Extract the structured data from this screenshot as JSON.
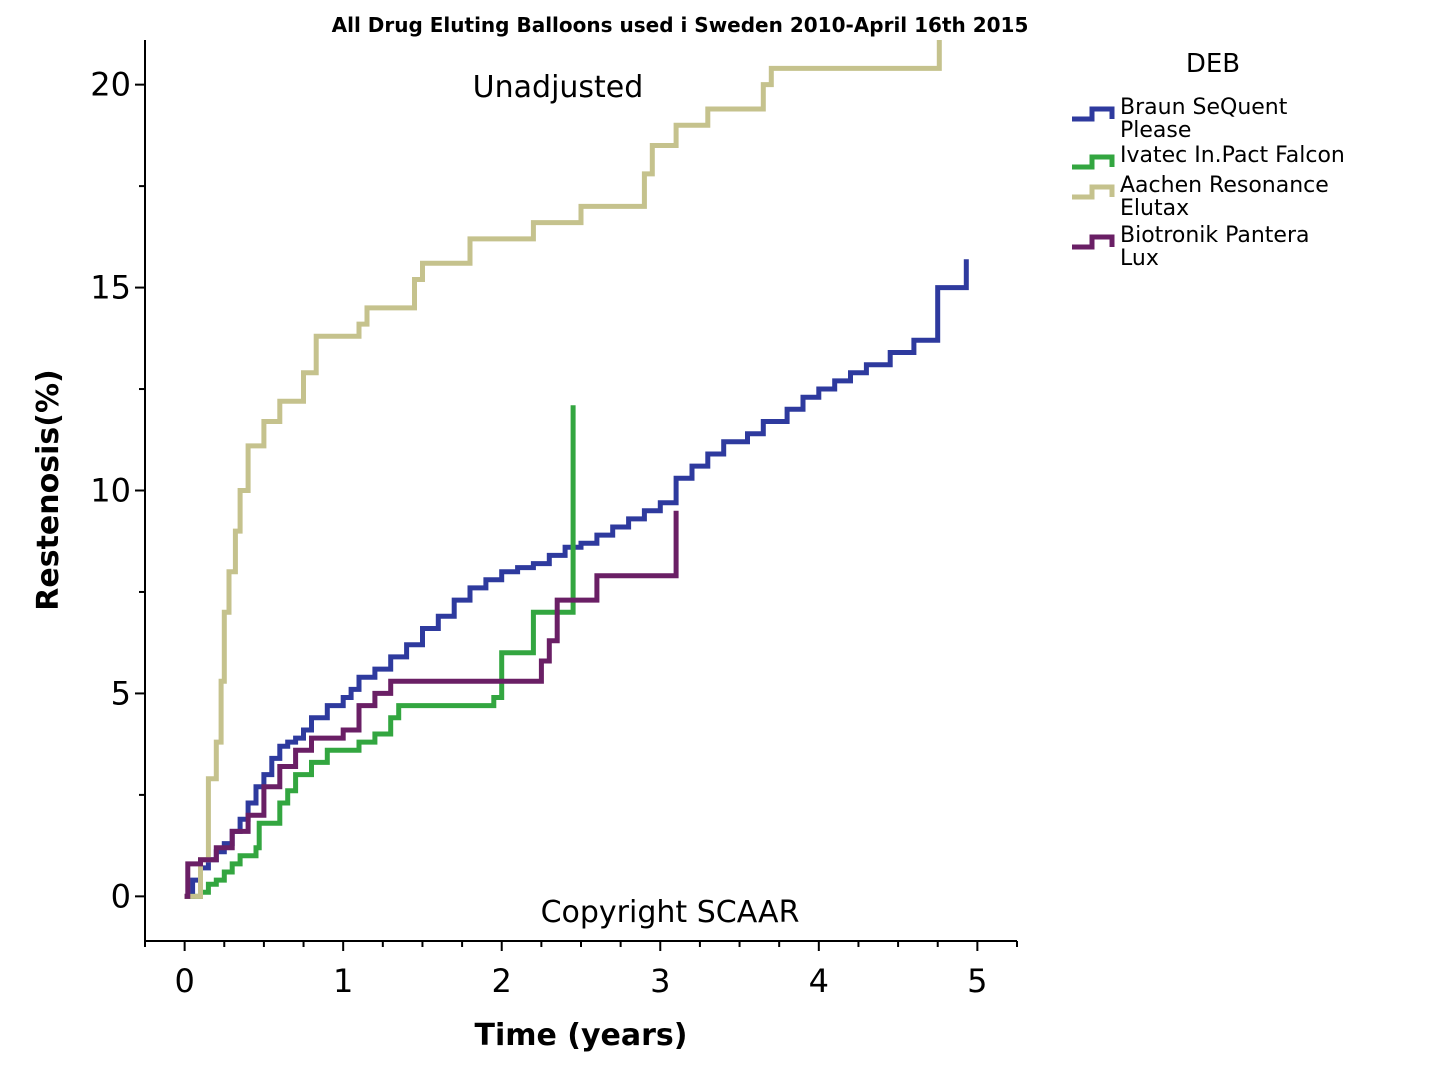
{
  "chart_data": {
    "type": "line",
    "step": true,
    "title": "All Drug Eluting Balloons used i Sweden 2010-April 16th 2015",
    "annotations": {
      "top": "Unadjusted",
      "bottom": "Copyright SCAAR"
    },
    "xlabel": "Time (years)",
    "ylabel": "Restenosis(%)",
    "xlim": [
      -0.25,
      5.25
    ],
    "ylim": [
      -1.1,
      21.1
    ],
    "xticks": [
      0,
      1,
      2,
      3,
      4,
      5
    ],
    "yticks": [
      0,
      5,
      10,
      15,
      20
    ],
    "grid": false,
    "legend": {
      "title": "DEB",
      "position": "top-right outside"
    },
    "series": [
      {
        "name": "Braun SeQuent Please",
        "label_lines": [
          "Braun SeQuent",
          "Please"
        ],
        "color": "#2e3a9e",
        "points": [
          [
            0,
            0
          ],
          [
            0.05,
            0.4
          ],
          [
            0.1,
            0.7
          ],
          [
            0.15,
            0.9
          ],
          [
            0.2,
            1.1
          ],
          [
            0.25,
            1.3
          ],
          [
            0.3,
            1.6
          ],
          [
            0.35,
            1.9
          ],
          [
            0.4,
            2.3
          ],
          [
            0.45,
            2.7
          ],
          [
            0.5,
            3.0
          ],
          [
            0.55,
            3.4
          ],
          [
            0.6,
            3.7
          ],
          [
            0.65,
            3.8
          ],
          [
            0.7,
            3.9
          ],
          [
            0.75,
            4.1
          ],
          [
            0.8,
            4.4
          ],
          [
            0.9,
            4.7
          ],
          [
            1.0,
            4.9
          ],
          [
            1.05,
            5.1
          ],
          [
            1.1,
            5.4
          ],
          [
            1.2,
            5.6
          ],
          [
            1.3,
            5.9
          ],
          [
            1.4,
            6.2
          ],
          [
            1.5,
            6.6
          ],
          [
            1.6,
            6.9
          ],
          [
            1.7,
            7.3
          ],
          [
            1.8,
            7.6
          ],
          [
            1.9,
            7.8
          ],
          [
            2.0,
            8.0
          ],
          [
            2.1,
            8.1
          ],
          [
            2.2,
            8.2
          ],
          [
            2.3,
            8.4
          ],
          [
            2.4,
            8.6
          ],
          [
            2.5,
            8.7
          ],
          [
            2.6,
            8.9
          ],
          [
            2.7,
            9.1
          ],
          [
            2.8,
            9.3
          ],
          [
            2.9,
            9.5
          ],
          [
            3.0,
            9.7
          ],
          [
            3.1,
            9.8
          ],
          [
            3.1,
            10.3
          ],
          [
            3.2,
            10.6
          ],
          [
            3.3,
            10.9
          ],
          [
            3.4,
            11.2
          ],
          [
            3.55,
            11.4
          ],
          [
            3.65,
            11.7
          ],
          [
            3.8,
            12.0
          ],
          [
            3.9,
            12.3
          ],
          [
            4.0,
            12.5
          ],
          [
            4.1,
            12.7
          ],
          [
            4.2,
            12.9
          ],
          [
            4.3,
            13.1
          ],
          [
            4.45,
            13.4
          ],
          [
            4.6,
            13.7
          ],
          [
            4.75,
            14.0
          ],
          [
            4.75,
            15.0
          ],
          [
            4.93,
            15.7
          ]
        ]
      },
      {
        "name": "Ivatec In.Pact Falcon",
        "label_lines": [
          "Ivatec In.Pact Falcon"
        ],
        "color": "#33a640",
        "points": [
          [
            0,
            0
          ],
          [
            0.1,
            0.1
          ],
          [
            0.15,
            0.3
          ],
          [
            0.2,
            0.4
          ],
          [
            0.25,
            0.6
          ],
          [
            0.3,
            0.8
          ],
          [
            0.35,
            1.0
          ],
          [
            0.45,
            1.2
          ],
          [
            0.47,
            1.8
          ],
          [
            0.6,
            2.3
          ],
          [
            0.65,
            2.6
          ],
          [
            0.7,
            3.0
          ],
          [
            0.8,
            3.3
          ],
          [
            0.9,
            3.6
          ],
          [
            1.1,
            3.8
          ],
          [
            1.2,
            4.0
          ],
          [
            1.3,
            4.4
          ],
          [
            1.35,
            4.7
          ],
          [
            1.95,
            4.9
          ],
          [
            2.0,
            6.0
          ],
          [
            2.2,
            7.0
          ],
          [
            2.45,
            7.0
          ],
          [
            2.45,
            12.1
          ]
        ]
      },
      {
        "name": "Aachen Resonance Elutax",
        "label_lines": [
          "Aachen Resonance",
          "Elutax"
        ],
        "color": "#c5c28d",
        "points": [
          [
            0,
            0
          ],
          [
            0.1,
            0.9
          ],
          [
            0.15,
            2.9
          ],
          [
            0.2,
            3.8
          ],
          [
            0.23,
            5.3
          ],
          [
            0.25,
            7.0
          ],
          [
            0.28,
            8.0
          ],
          [
            0.32,
            9.0
          ],
          [
            0.35,
            10.0
          ],
          [
            0.4,
            11.1
          ],
          [
            0.5,
            11.7
          ],
          [
            0.6,
            12.2
          ],
          [
            0.75,
            12.9
          ],
          [
            0.83,
            13.8
          ],
          [
            1.1,
            14.1
          ],
          [
            1.15,
            14.5
          ],
          [
            1.45,
            15.2
          ],
          [
            1.5,
            15.6
          ],
          [
            1.8,
            16.2
          ],
          [
            2.2,
            16.6
          ],
          [
            2.5,
            17.0
          ],
          [
            2.9,
            17.8
          ],
          [
            2.95,
            18.5
          ],
          [
            3.1,
            19.0
          ],
          [
            3.3,
            19.4
          ],
          [
            3.65,
            20.0
          ],
          [
            3.7,
            20.4
          ],
          [
            4.7,
            20.4
          ],
          [
            4.76,
            21.1
          ]
        ]
      },
      {
        "name": "Biotronik Pantera Lux",
        "label_lines": [
          "Biotronik Pantera",
          "Lux"
        ],
        "color": "#6a1f65",
        "points": [
          [
            0,
            0
          ],
          [
            0.02,
            0.8
          ],
          [
            0.1,
            0.9
          ],
          [
            0.2,
            1.2
          ],
          [
            0.3,
            1.6
          ],
          [
            0.4,
            2.0
          ],
          [
            0.5,
            2.7
          ],
          [
            0.6,
            3.2
          ],
          [
            0.7,
            3.6
          ],
          [
            0.8,
            3.9
          ],
          [
            1.0,
            4.1
          ],
          [
            1.1,
            4.7
          ],
          [
            1.2,
            5.0
          ],
          [
            1.3,
            5.3
          ],
          [
            2.15,
            5.3
          ],
          [
            2.25,
            5.8
          ],
          [
            2.3,
            6.3
          ],
          [
            2.35,
            7.3
          ],
          [
            2.6,
            7.9
          ],
          [
            3.1,
            7.9
          ],
          [
            3.1,
            9.5
          ]
        ]
      }
    ]
  }
}
